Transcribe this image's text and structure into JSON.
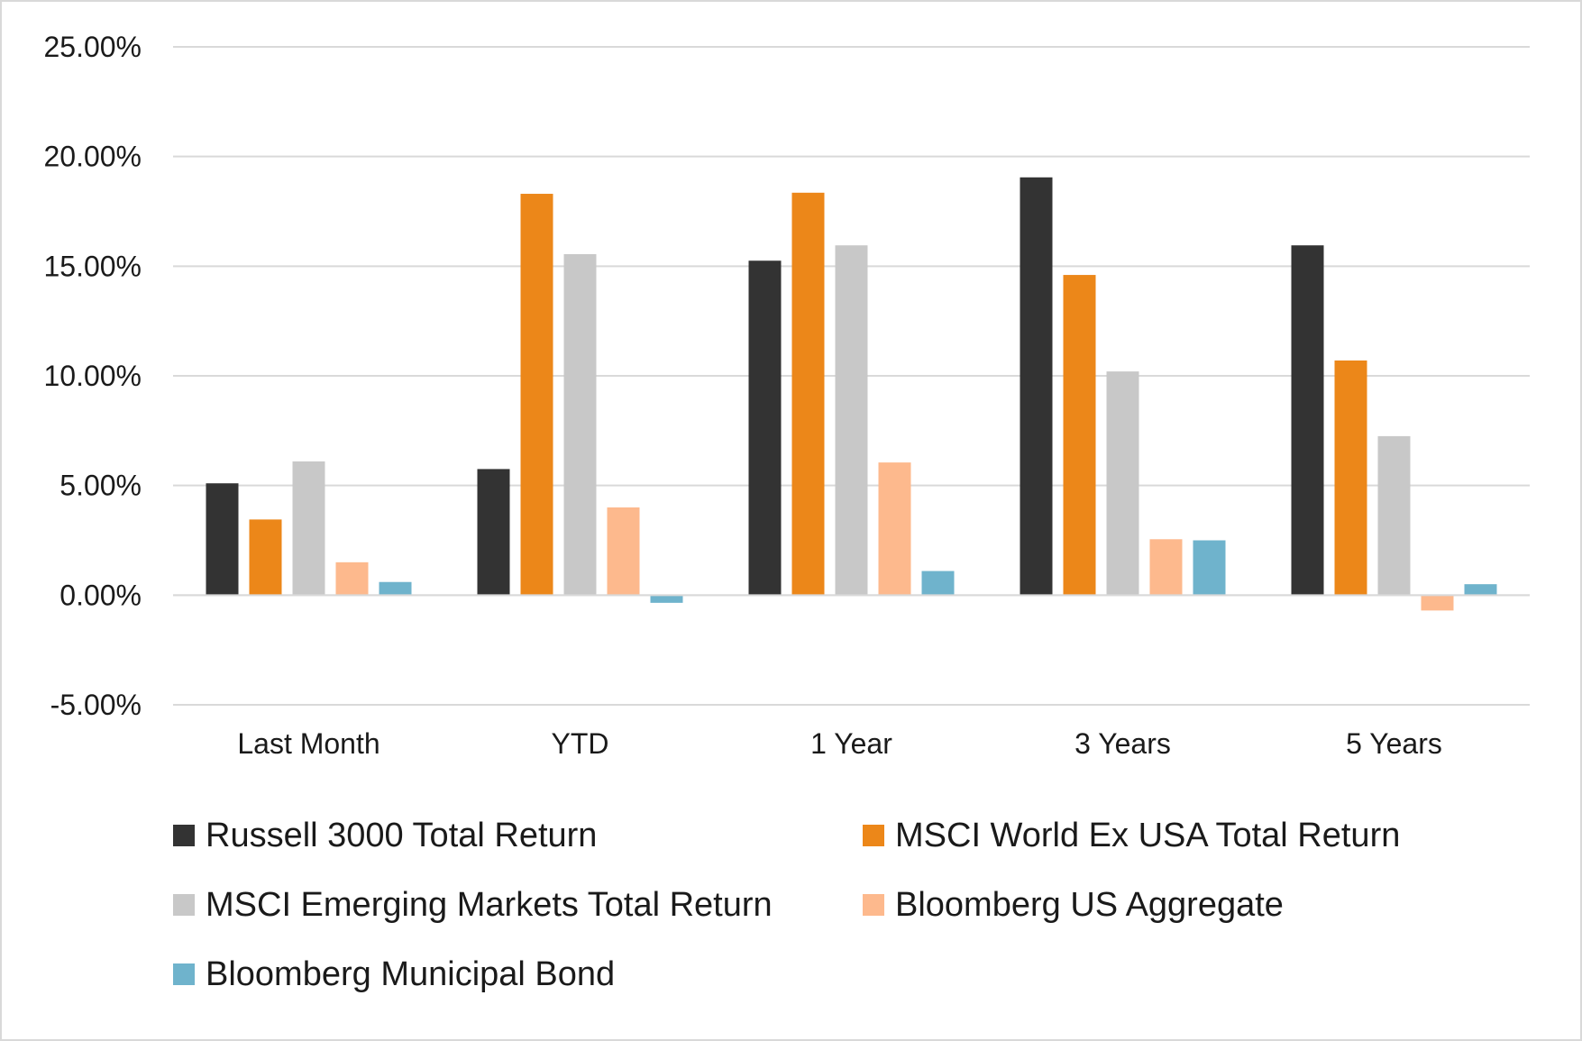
{
  "chart_data": {
    "type": "bar",
    "categories": [
      "Last Month",
      "YTD",
      "1 Year",
      "3 Years",
      "5 Years"
    ],
    "series": [
      {
        "name": "Russell 3000 Total Return",
        "color": "#333333",
        "values": [
          5.1,
          5.75,
          15.25,
          19.05,
          15.95
        ]
      },
      {
        "name": "MSCI World Ex USA Total Return",
        "color": "#ec8719",
        "values": [
          3.45,
          18.3,
          18.35,
          14.6,
          10.7
        ]
      },
      {
        "name": "MSCI Emerging Markets Total Return",
        "color": "#c8c8c8",
        "values": [
          6.1,
          15.55,
          15.95,
          10.2,
          7.25
        ]
      },
      {
        "name": "Bloomberg US Aggregate",
        "color": "#fdb98d",
        "values": [
          1.5,
          4.0,
          6.05,
          2.55,
          -0.7
        ]
      },
      {
        "name": "Bloomberg Municipal Bond",
        "color": "#6fb3cc",
        "values": [
          0.6,
          -0.35,
          1.1,
          2.5,
          0.5
        ]
      }
    ],
    "yticks": [
      "25.00%",
      "20.00%",
      "15.00%",
      "10.00%",
      "5.00%",
      "0.00%",
      "-5.00%"
    ],
    "ylim": [
      -5,
      25
    ],
    "title": "",
    "xlabel": "",
    "ylabel": "",
    "grid": true,
    "legend_position": "bottom"
  }
}
